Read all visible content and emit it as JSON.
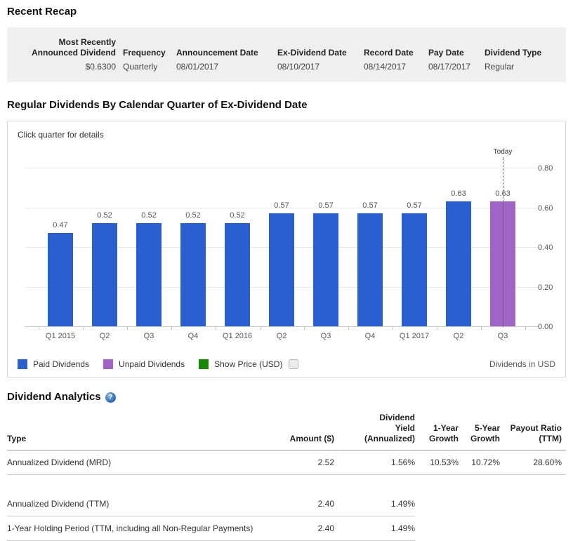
{
  "recap": {
    "heading": "Recent Recap",
    "columns": [
      {
        "label": "Most Recently Announced Dividend",
        "value": "$0.6300",
        "align": "right"
      },
      {
        "label": "Frequency",
        "value": "Quarterly",
        "align": "left"
      },
      {
        "label": "Announcement Date",
        "value": "08/01/2017",
        "align": "left"
      },
      {
        "label": "Ex-Dividend Date",
        "value": "08/10/2017",
        "align": "left"
      },
      {
        "label": "Record Date",
        "value": "08/14/2017",
        "align": "left"
      },
      {
        "label": "Pay Date",
        "value": "08/17/2017",
        "align": "left"
      },
      {
        "label": "Dividend Type",
        "value": "Regular",
        "align": "left"
      }
    ]
  },
  "chart": {
    "heading": "Regular Dividends By Calendar Quarter of Ex-Dividend Date",
    "note": "Click quarter for details",
    "right_note": "Dividends in USD"
  },
  "chart_data": {
    "type": "bar",
    "title": "Regular Dividends By Calendar Quarter of Ex-Dividend Date",
    "categories": [
      "Q1 2015",
      "Q2",
      "Q3",
      "Q4",
      "Q1 2016",
      "Q2",
      "Q3",
      "Q4",
      "Q1 2017",
      "Q2",
      "Q3"
    ],
    "series": [
      {
        "name": "Paid Dividends",
        "color": "#2a5fd0",
        "values": [
          0.47,
          0.52,
          0.52,
          0.52,
          0.52,
          0.57,
          0.57,
          0.57,
          0.57,
          0.63,
          null
        ]
      },
      {
        "name": "Unpaid Dividends",
        "color": "#a263c9",
        "values": [
          null,
          null,
          null,
          null,
          null,
          null,
          null,
          null,
          null,
          null,
          0.63
        ]
      }
    ],
    "bar_labels": [
      "0.47",
      "0.52",
      "0.52",
      "0.52",
      "0.52",
      "0.57",
      "0.57",
      "0.57",
      "0.57",
      "0.63",
      "0.63"
    ],
    "ylim": [
      0,
      0.88
    ],
    "yticks": [
      "0.00",
      "0.20",
      "0.40",
      "0.60",
      "0.80"
    ],
    "ytick_values": [
      0,
      0.2,
      0.4,
      0.6,
      0.8
    ],
    "yaxis_side": "right",
    "grid": true,
    "annotation": {
      "label": "Today",
      "category_index": 10
    },
    "legend_position": "bottom",
    "legend": [
      {
        "label": "Paid Dividends",
        "color": "#2a5fd0",
        "checkbox": false
      },
      {
        "label": "Unpaid Dividends",
        "color": "#a263c9",
        "checkbox": false
      },
      {
        "label": "Show Price (USD)",
        "color": "#158a00",
        "checkbox": true,
        "checked": false
      }
    ]
  },
  "analytics": {
    "heading": "Dividend Analytics",
    "help_icon": "?",
    "columns": [
      {
        "label_lines": [
          "Type"
        ]
      },
      {
        "label_lines": [
          "Amount ($)"
        ]
      },
      {
        "label_lines": [
          "Dividend",
          "Yield",
          "(Annualized)"
        ]
      },
      {
        "label_lines": [
          "1-Year",
          "Growth"
        ]
      },
      {
        "label_lines": [
          "5-Year",
          "Growth"
        ]
      },
      {
        "label_lines": [
          "Payout Ratio",
          "(TTM)"
        ]
      }
    ],
    "rows": [
      {
        "cells": [
          "Annualized Dividend (MRD)",
          "2.52",
          "1.56%",
          "10.53%",
          "10.72%",
          "28.60%"
        ],
        "divider": "full"
      },
      {
        "spacer": true
      },
      {
        "cells": [
          "Annualized Dividend (TTM)",
          "2.40",
          "1.49%",
          "",
          "",
          ""
        ],
        "divider": "partial"
      },
      {
        "cells": [
          "1-Year Holding Period (TTM, including all Non-Regular Payments)",
          "2.40",
          "1.49%",
          "",
          "",
          ""
        ],
        "divider": "partial"
      }
    ]
  }
}
